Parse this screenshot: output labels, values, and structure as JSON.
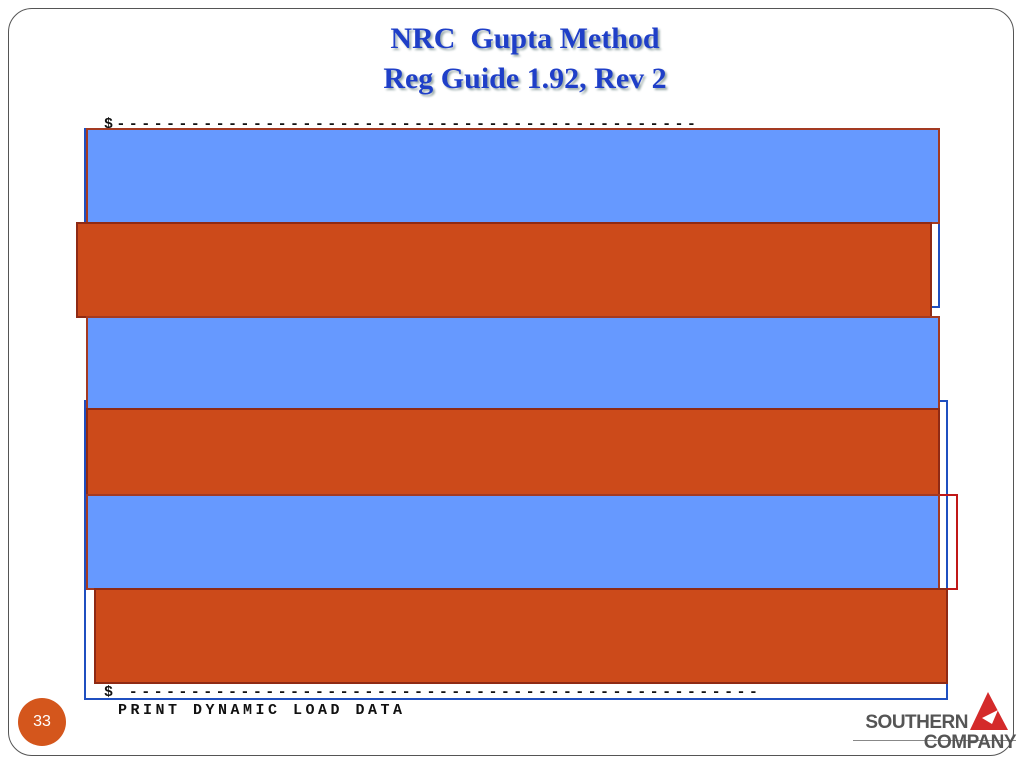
{
  "slide": {
    "title": [
      "NRC  Gupta Method",
      "Reg Guide 1.92, Rev 2"
    ],
    "code": [
      "$-----------------------------------------------",
      "$ ---------------------------------------------------",
      "PRINT DYNAMIC LOAD DATA"
    ],
    "page_number": "33",
    "logo": [
      "SOUTHERN",
      "COMPANY"
    ]
  }
}
